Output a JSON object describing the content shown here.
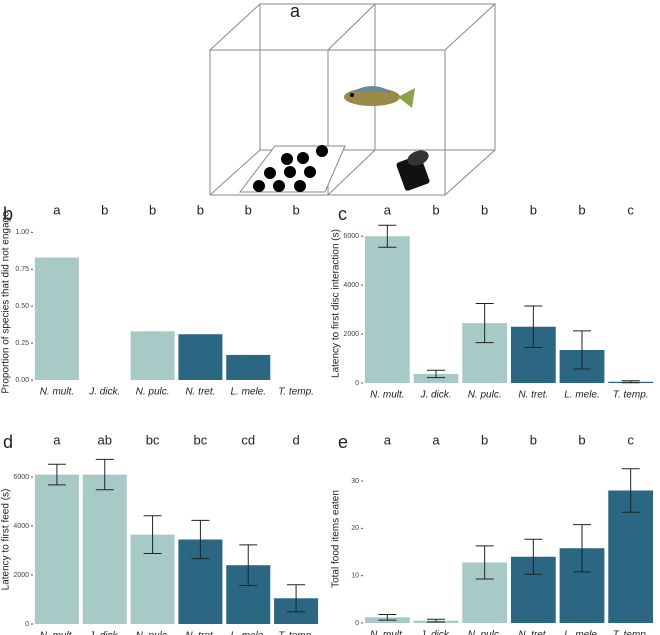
{
  "diagram": {
    "label": "a"
  },
  "chart_data": [
    {
      "type": "bar",
      "panel": "b",
      "ylabel": "Proportion of species that did not engage",
      "categories": [
        "N. mult.",
        "J. dick.",
        "N. pulc.",
        "N. tret.",
        "L. mele.",
        "T. temp."
      ],
      "values": [
        0.83,
        0,
        0.33,
        0.31,
        0.17,
        0
      ],
      "colors": [
        "#a8cac7",
        "#a8cac7",
        "#a8cac7",
        "#2b6683",
        "#2b6683",
        "#2b6683"
      ],
      "annotations": [
        "a",
        "b",
        "b",
        "b",
        "b",
        "b"
      ],
      "ylim": [
        0,
        1.05
      ],
      "yticks": [
        {
          "value": 0,
          "label": "0.00"
        },
        {
          "value": 0.25,
          "label": "0.25"
        },
        {
          "value": 0.5,
          "label": "0.50"
        },
        {
          "value": 0.75,
          "label": "0.75"
        },
        {
          "value": 1,
          "label": "1.00"
        }
      ]
    },
    {
      "type": "bar",
      "panel": "c",
      "ylabel": "Latency to first disc interaction (s)",
      "categories": [
        "N. mult.",
        "J. dick.",
        "N. pulc.",
        "N. tret.",
        "L. mele.",
        "T. temp."
      ],
      "values": [
        6000,
        370,
        2450,
        2300,
        1350,
        50
      ],
      "errors": [
        450,
        150,
        800,
        850,
        780,
        40
      ],
      "colors": [
        "#a8cac7",
        "#a8cac7",
        "#a8cac7",
        "#2b6683",
        "#2b6683",
        "#2b6683"
      ],
      "annotations": [
        "a",
        "b",
        "b",
        "b",
        "b",
        "c"
      ],
      "ylim": [
        0,
        6500
      ],
      "yticks": [
        0,
        2000,
        4000,
        6000
      ]
    },
    {
      "type": "bar",
      "panel": "d",
      "ylabel": "Latency to first feed (s)",
      "categories": [
        "N. mult.",
        "J. dick.",
        "N. pulc.",
        "N. tret.",
        "L. mele.",
        "T. temp."
      ],
      "values": [
        6100,
        6100,
        3650,
        3450,
        2400,
        1050
      ],
      "errors": [
        420,
        620,
        770,
        780,
        830,
        550
      ],
      "colors": [
        "#a8cac7",
        "#a8cac7",
        "#a8cac7",
        "#2b6683",
        "#2b6683",
        "#2b6683"
      ],
      "annotations": [
        "a",
        "ab",
        "bc",
        "bc",
        "cd",
        "d"
      ],
      "ylim": [
        0,
        6900
      ],
      "yticks": [
        0,
        2000,
        4000,
        6000
      ]
    },
    {
      "type": "bar",
      "panel": "e",
      "ylabel": "Total food items eaten",
      "categories": [
        "N. mult.",
        "J. dick.",
        "N. pulc.",
        "N. tret.",
        "L. mele.",
        "T. temp."
      ],
      "values": [
        1.2,
        0.5,
        12.8,
        14,
        15.8,
        28
      ],
      "errors": [
        0.6,
        0.3,
        3.5,
        3.7,
        5,
        4.6
      ],
      "colors": [
        "#a8cac7",
        "#a8cac7",
        "#a8cac7",
        "#2b6683",
        "#2b6683",
        "#2b6683"
      ],
      "annotations": [
        "a",
        "a",
        "b",
        "b",
        "b",
        "c"
      ],
      "ylim": [
        0,
        35.5
      ],
      "yticks": [
        0,
        10,
        20,
        30
      ]
    }
  ]
}
